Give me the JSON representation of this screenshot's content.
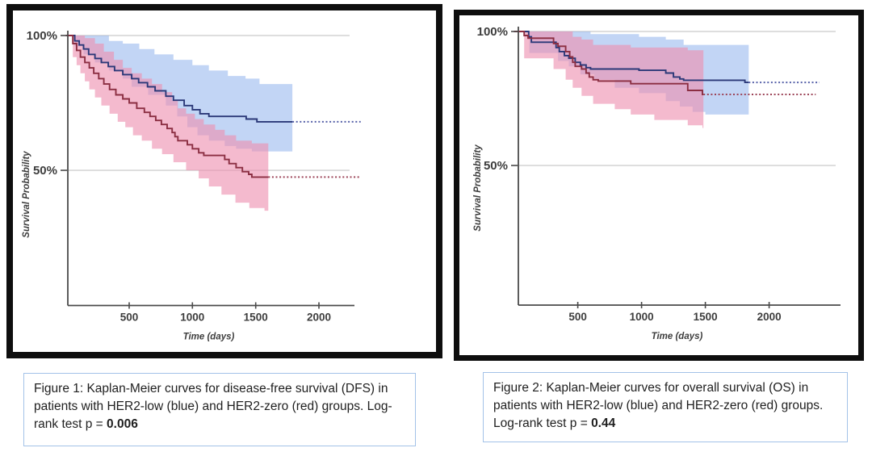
{
  "page": {
    "background": "#ffffff"
  },
  "colors": {
    "frame": "#0e0e0e",
    "grid": "#c9c9c9",
    "axis": "#4a4a4a",
    "tick_text": "#3d3d3d",
    "caption_border": "#a3c2e8",
    "blue_line": "#2b3878",
    "blue_dotted": "#5560a8",
    "blue_band": "#8fb3ec",
    "red_line": "#8b2e42",
    "red_dotted": "#9c4458",
    "red_band": "#ee8fb0"
  },
  "figures": [
    {
      "name": "figure-1-dfs",
      "caption": {
        "prefix": "Figure 1: Kaplan-Meier curves for disease-free survival (DFS) in patients with HER2-low (blue) and HER2-zero (red) groups. Log-rank test p = ",
        "p_value": "0.006"
      },
      "chart_data": {
        "type": "line",
        "subtype": "kaplan-meier-step",
        "title": "",
        "xlabel": "Time (days)",
        "ylabel": "Survival Probability",
        "xticks": [
          500,
          1000,
          1500,
          2000
        ],
        "yticks": [
          {
            "label": "100%",
            "value": 100
          },
          {
            "label": "50%",
            "value": 50
          }
        ],
        "xlim": [
          0,
          2350
        ],
        "ylim": [
          25,
          100
        ],
        "grid": "horizontal-only",
        "legend": "none",
        "series": [
          {
            "name": "HER2-low",
            "color": "blue",
            "steps": [
              [
                0,
                100
              ],
              [
                70,
                98
              ],
              [
                105,
                96.5
              ],
              [
                140,
                95
              ],
              [
                180,
                93
              ],
              [
                230,
                91.5
              ],
              [
                280,
                90
              ],
              [
                335,
                88.5
              ],
              [
                385,
                87
              ],
              [
                450,
                85.5
              ],
              [
                520,
                84
              ],
              [
                575,
                82.5
              ],
              [
                645,
                81
              ],
              [
                705,
                79.5
              ],
              [
                790,
                77.5
              ],
              [
                850,
                76
              ],
              [
                935,
                74
              ],
              [
                1000,
                72.5
              ],
              [
                1060,
                71
              ],
              [
                1130,
                70
              ],
              [
                1425,
                69
              ],
              [
                1510,
                68
              ]
            ],
            "solid_end": 1790,
            "censor_dotted_end": 2330,
            "final_level": 68,
            "ci_upper": [
              [
                0,
                100
              ],
              [
                230,
                100
              ],
              [
                340,
                98
              ],
              [
                450,
                97
              ],
              [
                580,
                95
              ],
              [
                700,
                93
              ],
              [
                850,
                91
              ],
              [
                1000,
                89
              ],
              [
                1130,
                87
              ],
              [
                1280,
                85
              ],
              [
                1420,
                84
              ],
              [
                1530,
                82
              ]
            ],
            "ci_lower": [
              [
                0,
                100
              ],
              [
                70,
                96
              ],
              [
                140,
                93
              ],
              [
                230,
                90
              ],
              [
                340,
                87
              ],
              [
                450,
                84
              ],
              [
                520,
                81
              ],
              [
                650,
                78
              ],
              [
                790,
                74
              ],
              [
                880,
                70
              ],
              [
                960,
                66
              ],
              [
                1040,
                63
              ],
              [
                1130,
                61
              ],
              [
                1255,
                59
              ],
              [
                1345,
                58
              ],
              [
                1470,
                57
              ]
            ],
            "ci_end": 1790
          },
          {
            "name": "HER2-zero",
            "color": "red",
            "steps": [
              [
                0,
                100
              ],
              [
                55,
                97
              ],
              [
                85,
                94.5
              ],
              [
                115,
                92
              ],
              [
                150,
                90
              ],
              [
                185,
                88
              ],
              [
                220,
                86
              ],
              [
                260,
                84
              ],
              [
                300,
                82
              ],
              [
                345,
                80
              ],
              [
                395,
                78
              ],
              [
                450,
                76.5
              ],
              [
                500,
                75
              ],
              [
                560,
                73
              ],
              [
                620,
                71.5
              ],
              [
                665,
                70
              ],
              [
                710,
                68.5
              ],
              [
                755,
                67
              ],
              [
                800,
                65.5
              ],
              [
                840,
                64
              ],
              [
                862,
                62.5
              ],
              [
                885,
                61
              ],
              [
                960,
                59.5
              ],
              [
                1000,
                58
              ],
              [
                1050,
                56.5
              ],
              [
                1090,
                55.5
              ],
              [
                1255,
                54
              ],
              [
                1290,
                52.5
              ],
              [
                1345,
                51
              ],
              [
                1395,
                49.5
              ],
              [
                1445,
                48.5
              ],
              [
                1470,
                47.5
              ]
            ],
            "solid_end": 1600,
            "censor_dotted_end": 2320,
            "final_level": 47.5,
            "ci_upper": [
              [
                0,
                100
              ],
              [
                150,
                99
              ],
              [
                230,
                97
              ],
              [
                300,
                94
              ],
              [
                380,
                91
              ],
              [
                450,
                88
              ],
              [
                520,
                86
              ],
              [
                600,
                84
              ],
              [
                680,
                82
              ],
              [
                760,
                79
              ],
              [
                840,
                76
              ],
              [
                885,
                73
              ],
              [
                950,
                71
              ],
              [
                1020,
                69
              ],
              [
                1090,
                67
              ],
              [
                1180,
                65
              ],
              [
                1255,
                63
              ],
              [
                1345,
                61
              ],
              [
                1470,
                60
              ]
            ],
            "ci_lower": [
              [
                0,
                100
              ],
              [
                55,
                92
              ],
              [
                85,
                89
              ],
              [
                115,
                86
              ],
              [
                150,
                83
              ],
              [
                185,
                80
              ],
              [
                230,
                77
              ],
              [
                280,
                74
              ],
              [
                345,
                71
              ],
              [
                410,
                68
              ],
              [
                470,
                66
              ],
              [
                530,
                63
              ],
              [
                600,
                61
              ],
              [
                680,
                58
              ],
              [
                760,
                56
              ],
              [
                850,
                53
              ],
              [
                950,
                50
              ],
              [
                1050,
                47
              ],
              [
                1130,
                44
              ],
              [
                1230,
                41
              ],
              [
                1340,
                38
              ],
              [
                1450,
                36
              ],
              [
                1570,
                35
              ]
            ],
            "ci_end": 1600
          }
        ]
      }
    },
    {
      "name": "figure-2-os",
      "caption": {
        "prefix": "Figure 2: Kaplan-Meier curves for overall survival (OS) in patients with HER2-low (blue) and HER2-zero (red) groups. Log-rank test p = ",
        "p_value": "0.44"
      },
      "chart_data": {
        "type": "line",
        "subtype": "kaplan-meier-step",
        "title": "",
        "xlabel": "Time (days)",
        "ylabel": "Survival Probability",
        "xticks": [
          500,
          1000,
          1500,
          2000
        ],
        "yticks": [
          {
            "label": "100%",
            "value": 100
          },
          {
            "label": "50%",
            "value": 50
          }
        ],
        "xlim": [
          0,
          2400
        ],
        "ylim": [
          25,
          100
        ],
        "grid": "horizontal-only",
        "legend": "none",
        "series": [
          {
            "name": "HER2-low",
            "color": "blue",
            "steps": [
              [
                0,
                100
              ],
              [
                115,
                98
              ],
              [
                136,
                96
              ],
              [
                330,
                94
              ],
              [
                355,
                92.5
              ],
              [
                395,
                91
              ],
              [
                430,
                90
              ],
              [
                480,
                88.5
              ],
              [
                520,
                87.5
              ],
              [
                565,
                86.5
              ],
              [
                600,
                86
              ],
              [
                980,
                85.5
              ],
              [
                1190,
                84.5
              ],
              [
                1250,
                83
              ],
              [
                1300,
                82.3
              ],
              [
                1330,
                81.8
              ],
              [
                1810,
                81
              ]
            ],
            "solid_end": 1840,
            "censor_dotted_end": 2395,
            "final_level": 81,
            "ci_upper": [
              [
                0,
                100
              ],
              [
                520,
                100
              ],
              [
                600,
                99
              ],
              [
                980,
                98
              ],
              [
                1190,
                97
              ],
              [
                1330,
                95
              ]
            ],
            "ci_lower": [
              [
                0,
                100
              ],
              [
                120,
                92
              ],
              [
                345,
                89
              ],
              [
                430,
                87
              ],
              [
                520,
                84
              ],
              [
                630,
                82
              ],
              [
                790,
                79
              ],
              [
                980,
                77
              ],
              [
                1190,
                74
              ],
              [
                1300,
                72
              ],
              [
                1400,
                70
              ],
              [
                1500,
                69
              ]
            ],
            "ci_end": 1840
          },
          {
            "name": "HER2-zero",
            "color": "red",
            "steps": [
              [
                0,
                100
              ],
              [
                80,
                98.5
              ],
              [
                110,
                97.5
              ],
              [
                310,
                95.5
              ],
              [
                345,
                94.5
              ],
              [
                405,
                92.5
              ],
              [
                437,
                90.5
              ],
              [
                460,
                88.5
              ],
              [
                480,
                87
              ],
              [
                530,
                86
              ],
              [
                565,
                84.5
              ],
              [
                590,
                83
              ],
              [
                620,
                82
              ],
              [
                660,
                81.5
              ],
              [
                915,
                80.5
              ],
              [
                1362,
                78
              ],
              [
                1477,
                76.5
              ]
            ],
            "solid_end": 1485,
            "censor_dotted_end": 2365,
            "final_level": 76.5,
            "ci_upper": [
              [
                0,
                100
              ],
              [
                405,
                100
              ],
              [
                460,
                98
              ],
              [
                530,
                97
              ],
              [
                620,
                95
              ],
              [
                915,
                94
              ],
              [
                1362,
                93
              ]
            ],
            "ci_lower": [
              [
                0,
                100
              ],
              [
                80,
                90
              ],
              [
                310,
                86
              ],
              [
                405,
                82
              ],
              [
                460,
                79
              ],
              [
                530,
                76
              ],
              [
                620,
                73
              ],
              [
                790,
                71
              ],
              [
                915,
                69
              ],
              [
                1100,
                67
              ],
              [
                1362,
                65
              ],
              [
                1477,
                64
              ]
            ],
            "ci_end": 1485
          }
        ]
      }
    }
  ]
}
